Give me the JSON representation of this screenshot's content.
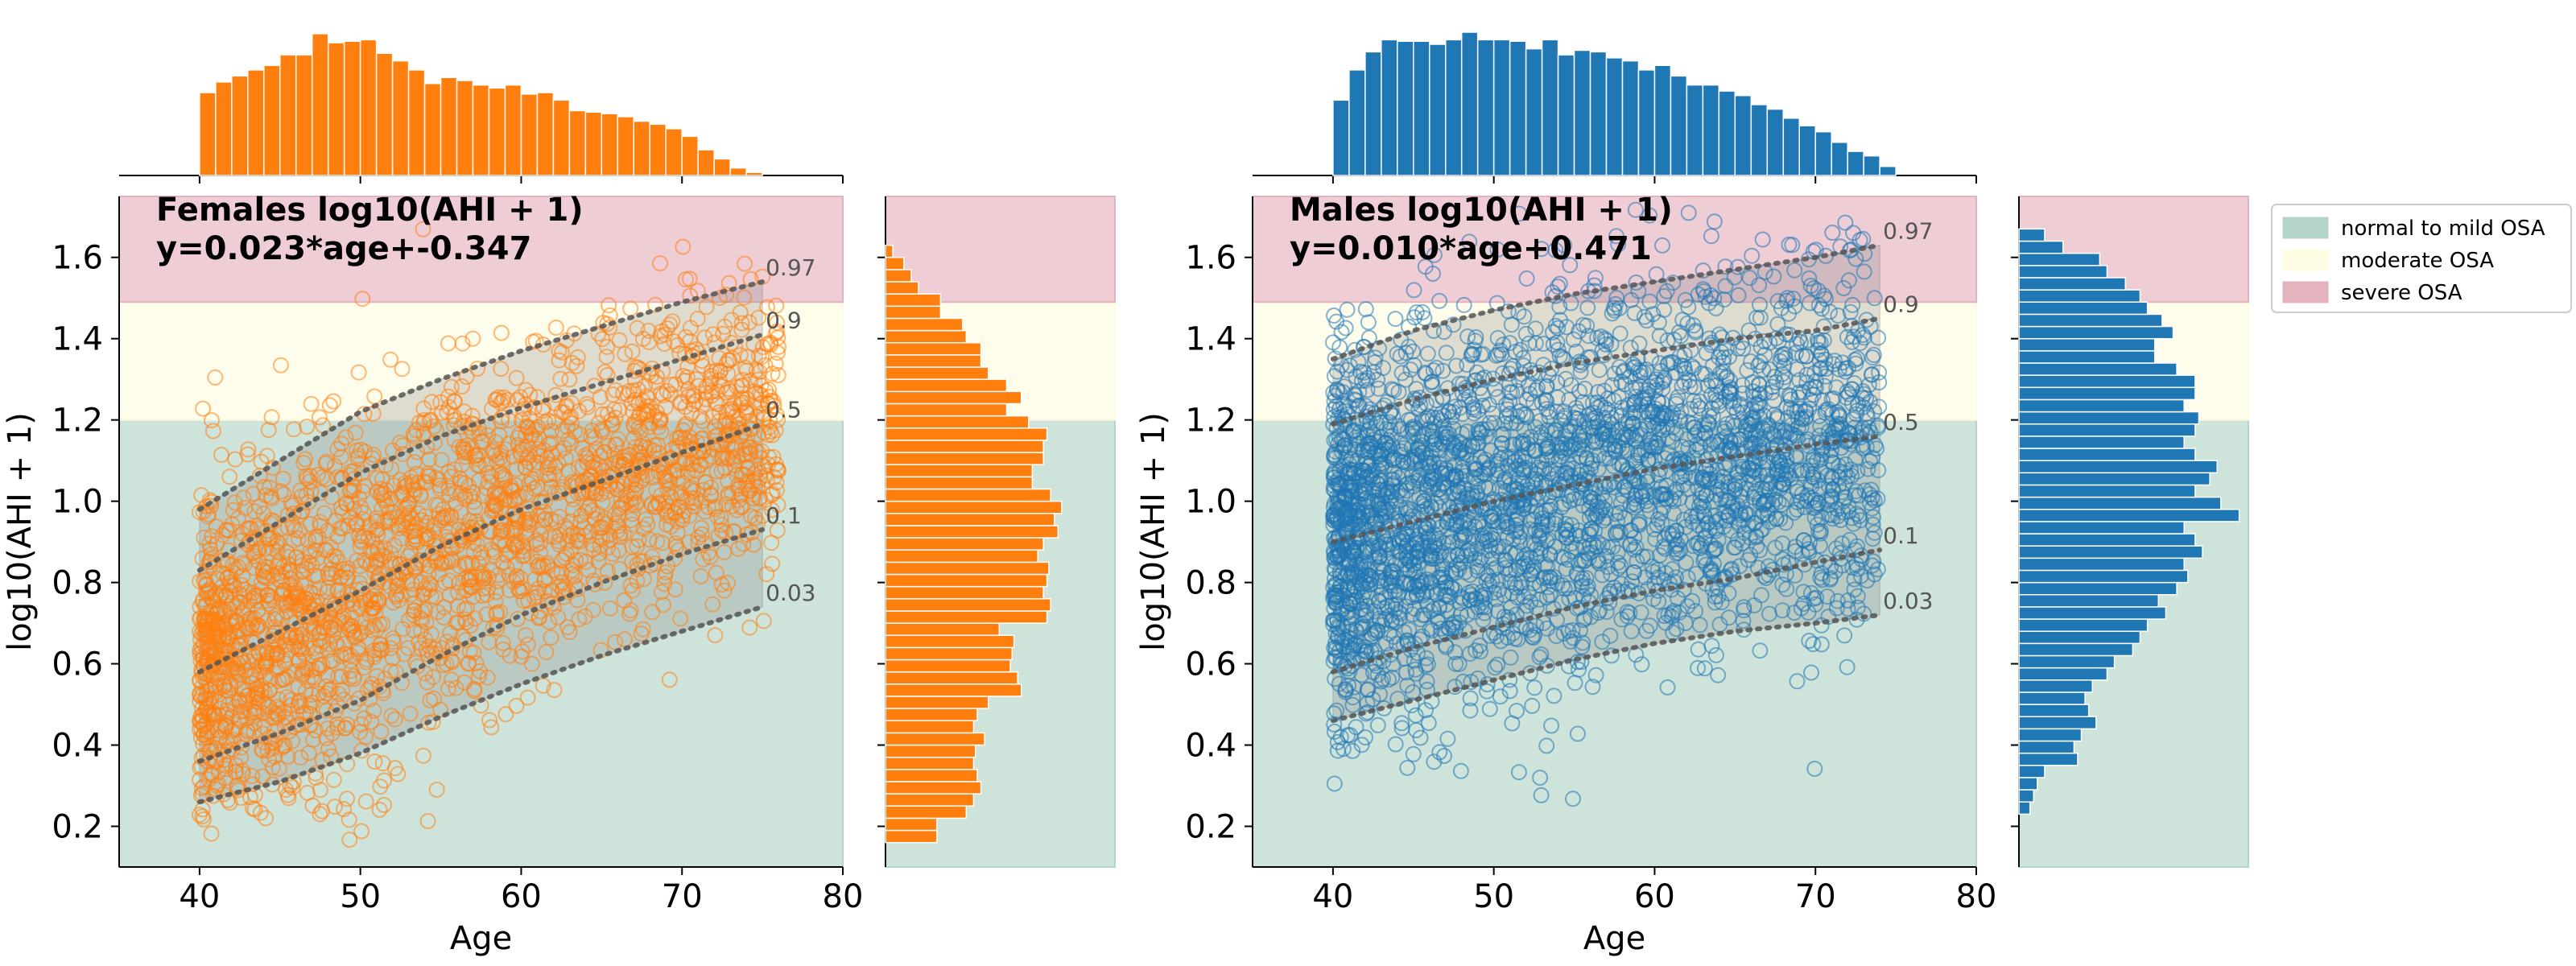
{
  "colors": {
    "female": "#ff7f0e",
    "male": "#1f77b4",
    "normal_band": "#b3d4c6",
    "moderate_band": "#fdfbe1",
    "severe_band": "#e5b2bf",
    "quantile_line": "#555555"
  },
  "legend": {
    "placement": "top-right",
    "items": [
      {
        "label": "normal to mild OSA",
        "color": "#b3d4c6"
      },
      {
        "label": "moderate OSA",
        "color": "#fdfbe1"
      },
      {
        "label": "severe OSA",
        "color": "#e5b2bf"
      }
    ]
  },
  "chart_data": [
    {
      "type": "scatter",
      "panel": "females",
      "annotation_line1": "Females log10(AHI + 1)",
      "annotation_line2": "y=0.023*age+-0.347",
      "xlabel": "Age",
      "ylabel": "log10(AHI + 1)",
      "xlim": [
        35,
        80
      ],
      "ylim": [
        0.1,
        1.75
      ],
      "xticks": [
        40,
        50,
        60,
        70,
        80
      ],
      "yticks": [
        0.2,
        0.4,
        0.6,
        0.8,
        1.0,
        1.2,
        1.4,
        1.6
      ],
      "bands": [
        {
          "name": "normal to mild OSA",
          "from": 0.1,
          "to": 1.2
        },
        {
          "name": "moderate OSA",
          "from": 1.2,
          "to": 1.49
        },
        {
          "name": "severe OSA",
          "from": 1.49,
          "to": 1.75
        }
      ],
      "quantiles": [
        {
          "label": "0.97",
          "x": [
            40,
            45,
            50,
            55,
            60,
            65,
            70,
            75
          ],
          "y": [
            0.98,
            1.1,
            1.22,
            1.3,
            1.37,
            1.43,
            1.49,
            1.54
          ]
        },
        {
          "label": "0.9",
          "x": [
            40,
            45,
            50,
            55,
            60,
            65,
            70,
            75
          ],
          "y": [
            0.83,
            0.95,
            1.07,
            1.16,
            1.23,
            1.29,
            1.35,
            1.41
          ]
        },
        {
          "label": "0.5",
          "x": [
            40,
            45,
            50,
            55,
            60,
            65,
            70,
            75
          ],
          "y": [
            0.58,
            0.68,
            0.78,
            0.89,
            0.98,
            1.05,
            1.12,
            1.19
          ]
        },
        {
          "label": "0.1",
          "x": [
            40,
            45,
            50,
            55,
            60,
            65,
            70,
            75
          ],
          "y": [
            0.36,
            0.43,
            0.51,
            0.62,
            0.72,
            0.8,
            0.87,
            0.93
          ]
        },
        {
          "label": "0.03",
          "x": [
            40,
            45,
            50,
            55,
            60,
            65,
            70,
            75
          ],
          "y": [
            0.26,
            0.31,
            0.38,
            0.47,
            0.55,
            0.62,
            0.68,
            0.74
          ]
        }
      ],
      "age_hist": {
        "bins": [
          40,
          41,
          42,
          43,
          44,
          45,
          46,
          47,
          48,
          49,
          50,
          51,
          52,
          53,
          54,
          55,
          56,
          57,
          58,
          59,
          60,
          61,
          62,
          63,
          64,
          65,
          66,
          67,
          68,
          69,
          70,
          71,
          72,
          73,
          74
        ],
        "counts": [
          55,
          62,
          66,
          70,
          73,
          80,
          80,
          94,
          88,
          89,
          90,
          81,
          76,
          70,
          61,
          65,
          63,
          60,
          58,
          60,
          54,
          55,
          50,
          43,
          42,
          41,
          39,
          36,
          34,
          31,
          26,
          17,
          11,
          5,
          2
        ]
      },
      "value_hist": {
        "bins": [
          0.16,
          0.19,
          0.22,
          0.25,
          0.28,
          0.31,
          0.34,
          0.37,
          0.4,
          0.43,
          0.46,
          0.49,
          0.52,
          0.55,
          0.58,
          0.61,
          0.64,
          0.67,
          0.7,
          0.73,
          0.76,
          0.79,
          0.82,
          0.85,
          0.88,
          0.91,
          0.94,
          0.97,
          1.0,
          1.03,
          1.06,
          1.09,
          1.12,
          1.15,
          1.18,
          1.21,
          1.24,
          1.27,
          1.3,
          1.33,
          1.36,
          1.39,
          1.42,
          1.45,
          1.48,
          1.51,
          1.54,
          1.57,
          1.6
        ],
        "counts": [
          28,
          28,
          44,
          48,
          52,
          50,
          48,
          49,
          54,
          48,
          50,
          56,
          74,
          72,
          68,
          69,
          70,
          62,
          88,
          90,
          86,
          88,
          89,
          83,
          86,
          94,
          92,
          96,
          90,
          80,
          80,
          86,
          86,
          88,
          78,
          66,
          74,
          66,
          56,
          52,
          52,
          44,
          42,
          30,
          30,
          18,
          14,
          10,
          4
        ]
      }
    },
    {
      "type": "scatter",
      "panel": "males",
      "annotation_line1": "Males log10(AHI + 1)",
      "annotation_line2": "y=0.010*age+0.471",
      "xlabel": "Age",
      "ylabel": "log10(AHI + 1)",
      "xlim": [
        35,
        80
      ],
      "ylim": [
        0.1,
        1.75
      ],
      "xticks": [
        40,
        50,
        60,
        70,
        80
      ],
      "yticks": [
        0.2,
        0.4,
        0.6,
        0.8,
        1.0,
        1.2,
        1.4,
        1.6
      ],
      "bands": [
        {
          "name": "normal to mild OSA",
          "from": 0.1,
          "to": 1.2
        },
        {
          "name": "moderate OSA",
          "from": 1.2,
          "to": 1.49
        },
        {
          "name": "severe OSA",
          "from": 1.49,
          "to": 1.75
        }
      ],
      "quantiles": [
        {
          "label": "0.97",
          "x": [
            40,
            45,
            50,
            55,
            60,
            65,
            70,
            74
          ],
          "y": [
            1.35,
            1.42,
            1.47,
            1.51,
            1.54,
            1.57,
            1.6,
            1.63
          ]
        },
        {
          "label": "0.9",
          "x": [
            40,
            45,
            50,
            55,
            60,
            65,
            70,
            74
          ],
          "y": [
            1.19,
            1.25,
            1.3,
            1.34,
            1.37,
            1.4,
            1.42,
            1.45
          ]
        },
        {
          "label": "0.5",
          "x": [
            40,
            45,
            50,
            55,
            60,
            65,
            70,
            74
          ],
          "y": [
            0.9,
            0.95,
            1.0,
            1.04,
            1.08,
            1.11,
            1.14,
            1.16
          ]
        },
        {
          "label": "0.1",
          "x": [
            40,
            45,
            50,
            55,
            60,
            65,
            70,
            74
          ],
          "y": [
            0.58,
            0.64,
            0.69,
            0.74,
            0.78,
            0.81,
            0.85,
            0.88
          ]
        },
        {
          "label": "0.03",
          "x": [
            40,
            45,
            50,
            55,
            60,
            65,
            70,
            74
          ],
          "y": [
            0.46,
            0.51,
            0.56,
            0.61,
            0.65,
            0.68,
            0.7,
            0.72
          ]
        }
      ],
      "age_hist": {
        "bins": [
          40,
          41,
          42,
          43,
          44,
          45,
          46,
          47,
          48,
          49,
          50,
          51,
          52,
          53,
          54,
          55,
          56,
          57,
          58,
          59,
          60,
          61,
          62,
          63,
          64,
          65,
          66,
          67,
          68,
          69,
          70,
          71,
          72,
          73,
          74
        ],
        "counts": [
          50,
          70,
          82,
          90,
          89,
          89,
          87,
          90,
          95,
          90,
          90,
          89,
          84,
          90,
          80,
          83,
          82,
          78,
          76,
          70,
          73,
          66,
          60,
          60,
          56,
          53,
          47,
          44,
          38,
          33,
          29,
          22,
          16,
          13,
          6
        ]
      },
      "value_hist": {
        "bins": [
          0.23,
          0.26,
          0.29,
          0.32,
          0.35,
          0.38,
          0.41,
          0.44,
          0.47,
          0.5,
          0.53,
          0.56,
          0.59,
          0.62,
          0.65,
          0.68,
          0.71,
          0.74,
          0.77,
          0.8,
          0.83,
          0.86,
          0.89,
          0.92,
          0.95,
          0.98,
          1.01,
          1.04,
          1.07,
          1.1,
          1.13,
          1.16,
          1.19,
          1.22,
          1.25,
          1.28,
          1.31,
          1.34,
          1.37,
          1.4,
          1.43,
          1.46,
          1.49,
          1.52,
          1.55,
          1.58,
          1.61,
          1.64
        ],
        "counts": [
          6,
          8,
          10,
          14,
          32,
          30,
          34,
          42,
          38,
          36,
          40,
          48,
          52,
          62,
          66,
          70,
          80,
          76,
          86,
          92,
          90,
          100,
          96,
          90,
          120,
          110,
          96,
          104,
          108,
          96,
          90,
          96,
          98,
          90,
          96,
          96,
          86,
          74,
          74,
          84,
          78,
          70,
          66,
          58,
          48,
          44,
          24,
          14
        ]
      }
    }
  ]
}
